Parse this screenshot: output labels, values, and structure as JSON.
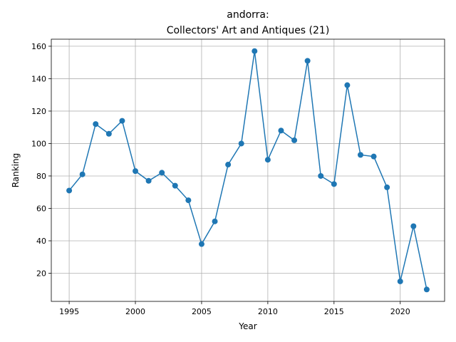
{
  "chart_data": {
    "type": "line",
    "title_line1": "andorra:",
    "title_line2": "Collectors' Art and Antiques (21)",
    "xlabel": "Year",
    "ylabel": "Ranking",
    "xlim": [
      1993.65,
      2023.35
    ],
    "ylim": [
      2.65,
      164.35
    ],
    "grid": true,
    "x_ticks": [
      1995,
      2000,
      2005,
      2010,
      2015,
      2020
    ],
    "y_ticks": [
      20,
      40,
      60,
      80,
      100,
      120,
      140,
      160
    ],
    "series": [
      {
        "color": "#1f77b4",
        "x": [
          1995,
          1996,
          1997,
          1998,
          1999,
          2000,
          2001,
          2002,
          2003,
          2004,
          2005,
          2006,
          2007,
          2008,
          2009,
          2010,
          2011,
          2012,
          2013,
          2014,
          2015,
          2016,
          2017,
          2018,
          2019,
          2020,
          2021,
          2022
        ],
        "y": [
          71,
          81,
          112,
          106,
          114,
          83,
          77,
          82,
          74,
          65,
          38,
          52,
          87,
          100,
          157,
          90,
          108,
          102,
          151,
          80,
          75,
          136,
          93,
          92,
          73,
          15,
          49,
          10
        ]
      }
    ]
  }
}
